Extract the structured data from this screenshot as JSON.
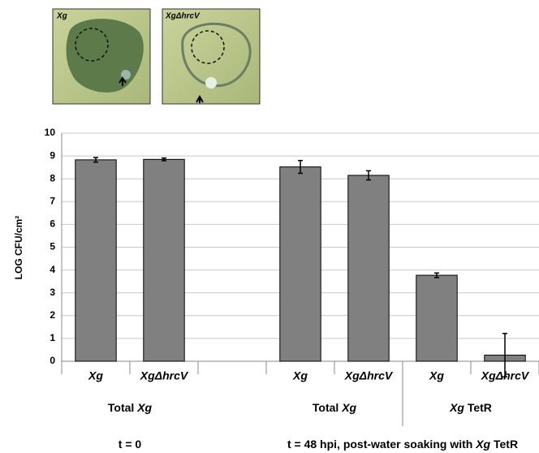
{
  "images": [
    {
      "label": "Xg"
    },
    {
      "label": "XgΔhrcV"
    }
  ],
  "chart_data": {
    "type": "bar",
    "y_label": "LOG CFU/cm²",
    "categories": [
      "Xg",
      "XgΔhrcV",
      null,
      "Xg",
      "XgΔhrcV",
      "Xg",
      "XgΔhrcV"
    ],
    "values": [
      8.83,
      8.85,
      null,
      8.52,
      8.15,
      3.77,
      0.27
    ],
    "errors": [
      0.1,
      0.06,
      null,
      0.28,
      0.2,
      0.1,
      0.95
    ],
    "color": "#808080",
    "ylim": [
      0,
      10
    ],
    "yticks": [
      0,
      1,
      2,
      3,
      4,
      5,
      6,
      7,
      8,
      9,
      10
    ],
    "grid": true,
    "groups": [
      "Total Xg",
      "Total Xg",
      "Xg TetR"
    ],
    "time_labels": [
      "t = 0",
      "t = 48 hpi, post-water soaking with Xg TetR"
    ]
  }
}
